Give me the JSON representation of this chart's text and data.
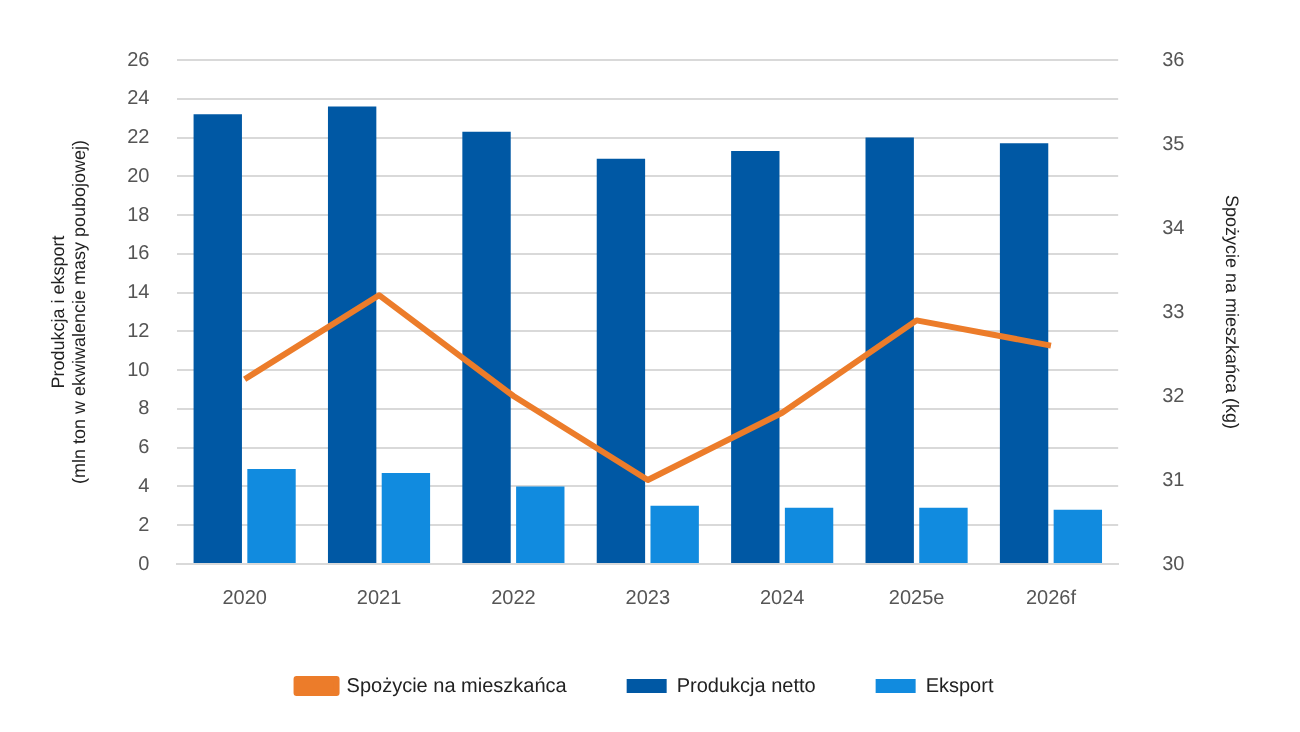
{
  "chart_data": {
    "type": "bar",
    "categories": [
      "2020",
      "2021",
      "2022",
      "2023",
      "2024",
      "2025e",
      "2026f"
    ],
    "series": [
      {
        "name": "Produkcja netto",
        "color": "#0058a4",
        "values": [
          23.2,
          23.6,
          22.3,
          20.9,
          21.3,
          22.0,
          21.7
        ]
      },
      {
        "name": "Eksport",
        "color": "#118bdf",
        "values": [
          4.9,
          4.7,
          4.0,
          3.0,
          2.9,
          2.9,
          2.8
        ]
      },
      {
        "name": "Spożycie na mieszkańca",
        "type": "line",
        "axis": "y2",
        "color": "#ec7c2a",
        "values": [
          32.2,
          33.2,
          32.0,
          31.0,
          31.8,
          32.9,
          32.6
        ]
      }
    ],
    "ylabel": "Produkcja i eksport\n(mln ton w ekwiwalencie masy poubojowej)",
    "y2label": "Spożycie na mieszkańca (kg)",
    "ylim": [
      0,
      26
    ],
    "yticks": [
      0,
      2,
      4,
      6,
      8,
      10,
      12,
      14,
      16,
      18,
      20,
      22,
      24,
      26
    ],
    "y2lim": [
      30,
      36
    ],
    "y2ticks": [
      30,
      31,
      32,
      33,
      34,
      35,
      36
    ],
    "grid": "y",
    "legend": "bottom",
    "marker": "none"
  }
}
